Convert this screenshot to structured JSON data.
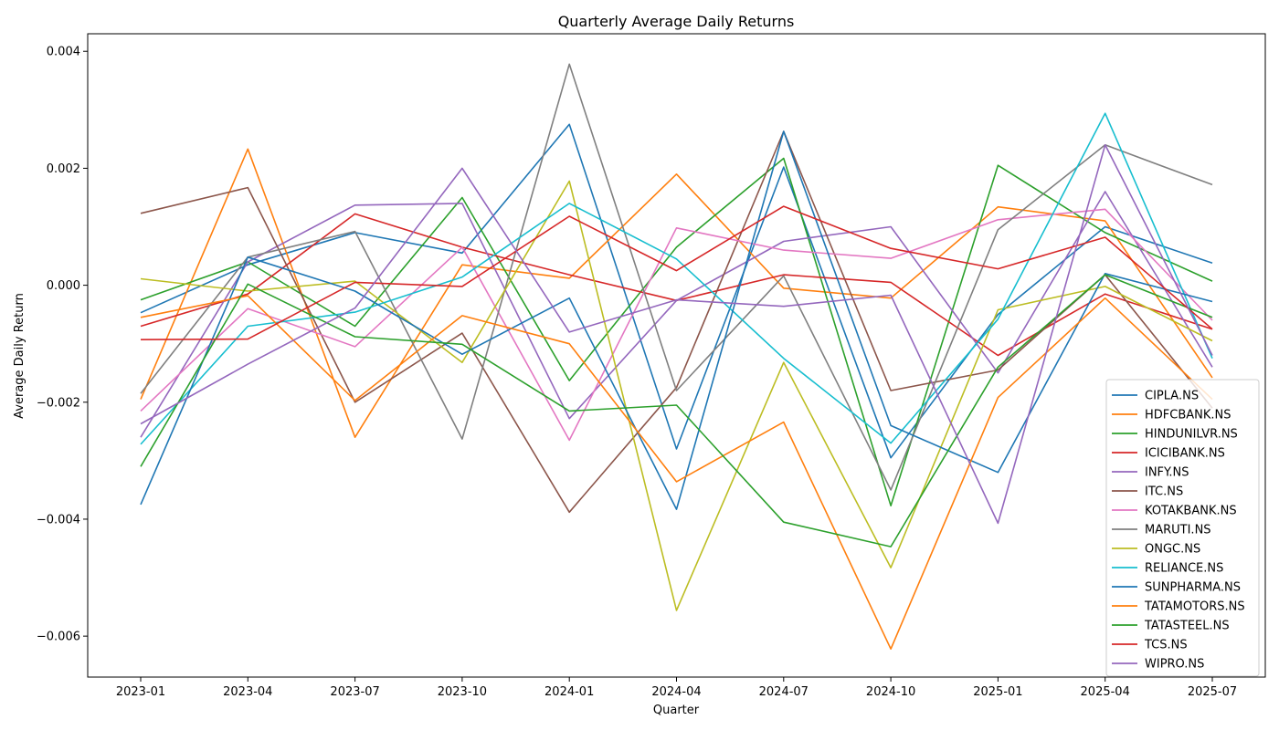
{
  "chart_data": {
    "type": "line",
    "title": "Quarterly Average Daily Returns",
    "xlabel": "Quarter",
    "ylabel": "Average Daily Return",
    "categories": [
      "2023-01",
      "2023-04",
      "2023-07",
      "2023-10",
      "2024-01",
      "2024-04",
      "2024-07",
      "2024-10",
      "2025-01",
      "2025-04",
      "2025-07"
    ],
    "y_ticks": [
      -0.006,
      -0.004,
      -0.002,
      0.0,
      0.002,
      0.004
    ],
    "y_tick_labels": [
      "−0.006",
      "−0.004",
      "−0.002",
      "0.000",
      "0.002",
      "0.004"
    ],
    "ylim": [
      -0.0067,
      0.0043
    ],
    "grid": false,
    "legend_position": "lower-right",
    "series": [
      {
        "name": "CIPLA.NS",
        "color": "#1f77b4",
        "values": [
          -0.00047,
          0.00035,
          0.0009,
          0.00055,
          0.00275,
          -0.0028,
          0.00202,
          -0.00295,
          -0.0005,
          0.001,
          0.00038
        ]
      },
      {
        "name": "HDFCBANK.NS",
        "color": "#ff7f0e",
        "values": [
          -0.00195,
          0.00233,
          -0.0026,
          0.00035,
          0.00012,
          0.0019,
          -5e-05,
          -0.00022,
          0.00134,
          0.0011,
          -0.00158
        ]
      },
      {
        "name": "HINDUNILVR.NS",
        "color": "#2ca02c",
        "values": [
          -0.00025,
          0.0004,
          -0.0007,
          0.0015,
          -0.00163,
          0.00065,
          0.00217,
          -0.00377,
          0.00205,
          0.0009,
          7e-05
        ]
      },
      {
        "name": "ICICIBANK.NS",
        "color": "#d62728",
        "values": [
          -0.0007,
          -0.00015,
          0.00122,
          0.00065,
          0.00018,
          -0.00026,
          0.00018,
          5e-05,
          -0.0012,
          -0.00015,
          -0.00075
        ]
      },
      {
        "name": "INFY.NS",
        "color": "#9467bd",
        "values": [
          -0.0026,
          0.0004,
          0.00137,
          0.0014,
          -0.00228,
          -0.00026,
          0.00075,
          0.001,
          -0.0015,
          0.0016,
          -0.0014
        ]
      },
      {
        "name": "ITC.NS",
        "color": "#8c564b",
        "values": [
          0.00123,
          0.00167,
          -0.002,
          -0.00082,
          -0.00388,
          -0.00175,
          0.00263,
          -0.0018,
          -0.00145,
          0.00018,
          -0.0021
        ]
      },
      {
        "name": "KOTAKBANK.NS",
        "color": "#e377c2",
        "values": [
          -0.00215,
          -0.0004,
          -0.00105,
          0.00065,
          -0.00265,
          0.00098,
          0.0006,
          0.00046,
          0.00112,
          0.0013,
          -0.0006
        ]
      },
      {
        "name": "MARUTI.NS",
        "color": "#7f7f7f",
        "values": [
          -0.00185,
          0.00048,
          0.00092,
          -0.00263,
          0.00378,
          -0.0018,
          0.00016,
          -0.0035,
          0.00095,
          0.0024,
          0.00172
        ]
      },
      {
        "name": "ONGC.NS",
        "color": "#bcbd22",
        "values": [
          0.00011,
          -0.0001,
          7e-05,
          -0.00132,
          0.00178,
          -0.00556,
          -0.00132,
          -0.00483,
          -0.00042,
          -2e-05,
          -0.00095
        ]
      },
      {
        "name": "RELIANCE.NS",
        "color": "#17becf",
        "values": [
          -0.00272,
          -0.0007,
          -0.00046,
          0.00014,
          0.0014,
          0.00045,
          -0.00125,
          -0.0027,
          -0.00058,
          0.00294,
          -0.00125
        ]
      },
      {
        "name": "SUNPHARMA.NS",
        "color": "#1f77b4",
        "values": [
          -0.00375,
          0.00048,
          -0.0001,
          -0.00118,
          -0.00022,
          -0.00383,
          0.00263,
          -0.0024,
          -0.0032,
          0.0002,
          -0.00028
        ]
      },
      {
        "name": "TATAMOTORS.NS",
        "color": "#ff7f0e",
        "values": [
          -0.00055,
          -0.00018,
          -0.00197,
          -0.00052,
          -0.001,
          -0.00336,
          -0.00234,
          -0.00622,
          -0.00192,
          -0.00022,
          -0.00195
        ]
      },
      {
        "name": "TATASTEEL.NS",
        "color": "#2ca02c",
        "values": [
          -0.0031,
          2e-05,
          -0.00088,
          -0.00101,
          -0.00215,
          -0.00205,
          -0.00405,
          -0.00447,
          -0.0014,
          0.00018,
          -0.00055
        ]
      },
      {
        "name": "TCS.NS",
        "color": "#d62728",
        "values": [
          -0.00093,
          -0.00092,
          5e-05,
          -2e-05,
          0.00118,
          0.00025,
          0.00135,
          0.00063,
          0.00028,
          0.00082,
          -0.00075
        ]
      },
      {
        "name": "WIPRO.NS",
        "color": "#9467bd",
        "values": [
          -0.00237,
          -0.00135,
          -0.00039,
          0.002,
          -0.0008,
          -0.00025,
          -0.00036,
          -0.00017,
          -0.00407,
          0.0024,
          -0.0012
        ]
      }
    ]
  }
}
